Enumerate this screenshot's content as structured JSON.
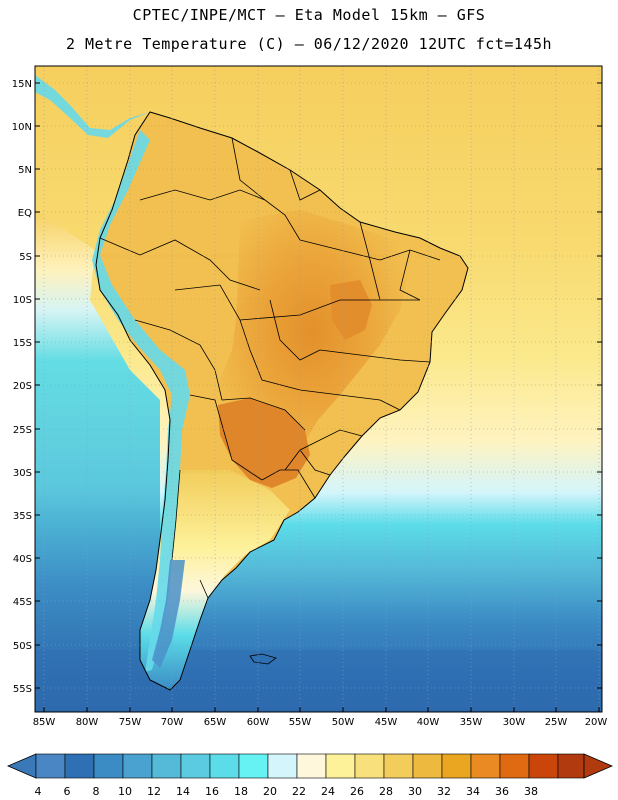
{
  "header": {
    "line1": "CPTEC/INPE/MCT –   Eta Model 15km – GFS",
    "line2": "2 Metre Temperature (C) – 06/12/2020 12UTC fct=145h"
  },
  "map": {
    "lat_labels": [
      "15N",
      "10N",
      "5N",
      "EQ",
      "5S",
      "10S",
      "15S",
      "20S",
      "25S",
      "30S",
      "35S",
      "40S",
      "45S",
      "50S",
      "55S"
    ],
    "lon_labels": [
      "85W",
      "80W",
      "75W",
      "70W",
      "65W",
      "60W",
      "55W",
      "50W",
      "45W",
      "40W",
      "35W",
      "30W",
      "25W",
      "20W"
    ],
    "extent": {
      "lon_min": -86,
      "lon_max": -19,
      "lat_min": -58,
      "lat_max": 16
    }
  },
  "colorbar": {
    "labels": [
      "4",
      "6",
      "8",
      "10",
      "12",
      "14",
      "16",
      "18",
      "20",
      "22",
      "24",
      "26",
      "28",
      "30",
      "32",
      "34",
      "36",
      "38"
    ],
    "colors": [
      "#4a86c4",
      "#2f6fb3",
      "#3b8bc4",
      "#49a2cf",
      "#55b9d8",
      "#5acbe0",
      "#5cdce8",
      "#66f2f2",
      "#d4f5fb",
      "#fff7dc",
      "#fdf19a",
      "#f8e17c",
      "#f2cd5c",
      "#eeb93f",
      "#eaa620",
      "#e98b22",
      "#e06a12",
      "#c9450a",
      "#b13a0e"
    ],
    "left_arrow": "#3a78b8",
    "right_arrow": "#b13a0e"
  },
  "field_colors": {
    "ocean_warm": "#f6cf5e",
    "ocean_hot": "#f0c04a",
    "land_hot": "#eba53a",
    "land_hotter": "#e3902a",
    "ocean_mild": "#fbe787",
    "ocean_cool": "#5acbe0",
    "ocean_cold": "#3b8bc4",
    "ocean_colder": "#2f6fb3",
    "mountain_cold": "#66d9ea"
  }
}
